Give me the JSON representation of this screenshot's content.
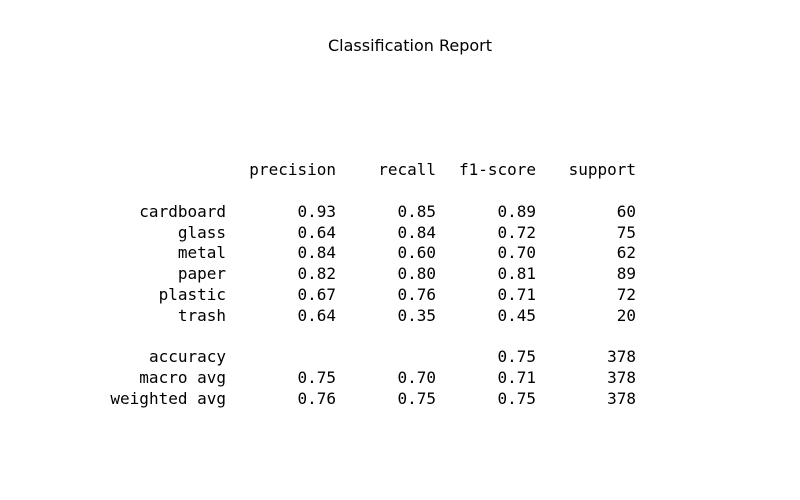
{
  "title": "Classification Report",
  "columns": [
    "precision",
    "recall",
    "f1-score",
    "support"
  ],
  "rows": [
    {
      "label": "cardboard",
      "precision": "0.93",
      "recall": "0.85",
      "f1": "0.89",
      "support": "60"
    },
    {
      "label": "glass",
      "precision": "0.64",
      "recall": "0.84",
      "f1": "0.72",
      "support": "75"
    },
    {
      "label": "metal",
      "precision": "0.84",
      "recall": "0.60",
      "f1": "0.70",
      "support": "62"
    },
    {
      "label": "paper",
      "precision": "0.82",
      "recall": "0.80",
      "f1": "0.81",
      "support": "89"
    },
    {
      "label": "plastic",
      "precision": "0.67",
      "recall": "0.76",
      "f1": "0.71",
      "support": "72"
    },
    {
      "label": "trash",
      "precision": "0.64",
      "recall": "0.35",
      "f1": "0.45",
      "support": "20"
    }
  ],
  "summary": [
    {
      "label": "accuracy",
      "precision": "",
      "recall": "",
      "f1": "0.75",
      "support": "378"
    },
    {
      "label": "macro avg",
      "precision": "0.75",
      "recall": "0.70",
      "f1": "0.71",
      "support": "378"
    },
    {
      "label": "weighted avg",
      "precision": "0.76",
      "recall": "0.75",
      "f1": "0.75",
      "support": "378"
    }
  ]
}
